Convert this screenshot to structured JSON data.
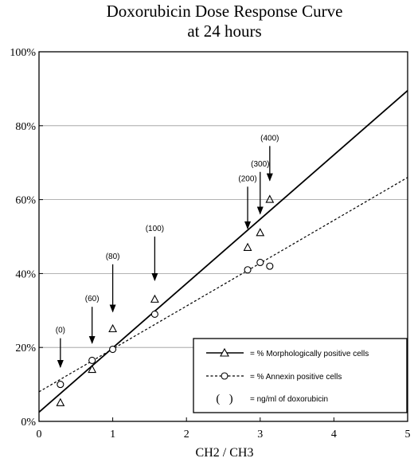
{
  "chart_data": {
    "type": "scatter",
    "title": [
      "Doxorubicin Dose Response Curve",
      "at 24 hours"
    ],
    "xlabel": "CH2 / CH3",
    "ylabel": "",
    "xlim": [
      0,
      5
    ],
    "ylim": [
      0,
      100
    ],
    "x_ticks": [
      "0",
      "1",
      "2",
      "3",
      "4",
      "5"
    ],
    "y_ticks": [
      "0%",
      "20%",
      "40%",
      "60%",
      "80%",
      "100%"
    ],
    "grid": "horizontal",
    "legend_position": "bottom-right",
    "series": [
      {
        "name": "= % Morphologically positive cells",
        "marker": "triangle",
        "line_style": "solid",
        "points": [
          {
            "x": 0.29,
            "y": 5
          },
          {
            "x": 0.72,
            "y": 14
          },
          {
            "x": 1.0,
            "y": 25
          },
          {
            "x": 1.57,
            "y": 33
          },
          {
            "x": 2.83,
            "y": 47
          },
          {
            "x": 3.0,
            "y": 51
          },
          {
            "x": 3.13,
            "y": 60
          }
        ],
        "fit_line": [
          {
            "x": 0,
            "y": 2.5
          },
          {
            "x": 5,
            "y": 89.5
          }
        ]
      },
      {
        "name": "= % Annexin positive cells",
        "marker": "circle",
        "line_style": "dashed",
        "points": [
          {
            "x": 0.29,
            "y": 10
          },
          {
            "x": 0.72,
            "y": 16.5
          },
          {
            "x": 1.0,
            "y": 19.5
          },
          {
            "x": 1.57,
            "y": 29
          },
          {
            "x": 2.83,
            "y": 41
          },
          {
            "x": 3.0,
            "y": 43
          },
          {
            "x": 3.13,
            "y": 42
          }
        ],
        "fit_line": [
          {
            "x": 0,
            "y": 8
          },
          {
            "x": 5,
            "y": 66
          }
        ]
      }
    ],
    "annotations": [
      {
        "label": "(0)",
        "x": 0.29,
        "y_text": 24,
        "y_start": 22.5,
        "y_end": 12.5
      },
      {
        "label": "(60)",
        "x": 0.72,
        "y_text": 32.5,
        "y_start": 31,
        "y_end": 19
      },
      {
        "label": "(80)",
        "x": 1.0,
        "y_text": 44,
        "y_start": 42.5,
        "y_end": 27.5
      },
      {
        "label": "(100)",
        "x": 1.57,
        "y_text": 51.5,
        "y_start": 50,
        "y_end": 36
      },
      {
        "label": "(200)",
        "x": 2.83,
        "y_text": 65,
        "y_start": 63.5,
        "y_end": 50
      },
      {
        "label": "(300)",
        "x": 3.0,
        "y_text": 69,
        "y_start": 67.5,
        "y_end": 54
      },
      {
        "label": "(400)",
        "x": 3.13,
        "y_text": 76,
        "y_start": 74.5,
        "y_end": 63
      }
    ],
    "legend_note": "= ng/ml of doxorubicin",
    "legend_note_symbol": "(   )"
  }
}
